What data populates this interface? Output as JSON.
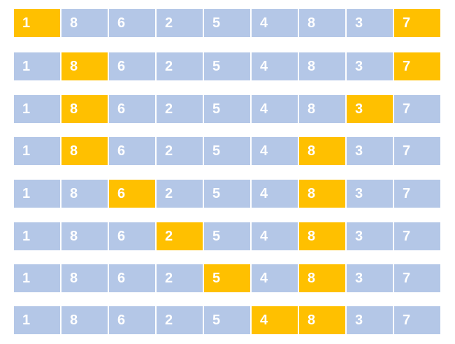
{
  "colors": {
    "normal": "#b4c7e7",
    "highlight": "#ffc000"
  },
  "rows": [
    {
      "values": [
        "1",
        "8",
        "6",
        "2",
        "5",
        "4",
        "8",
        "3",
        "7"
      ],
      "highlighted": [
        0,
        8
      ]
    },
    {
      "values": [
        "1",
        "8",
        "6",
        "2",
        "5",
        "4",
        "8",
        "3",
        "7"
      ],
      "highlighted": [
        1,
        8
      ]
    },
    {
      "values": [
        "1",
        "8",
        "6",
        "2",
        "5",
        "4",
        "8",
        "3",
        "7"
      ],
      "highlighted": [
        1,
        7
      ]
    },
    {
      "values": [
        "1",
        "8",
        "6",
        "2",
        "5",
        "4",
        "8",
        "3",
        "7"
      ],
      "highlighted": [
        1,
        6
      ]
    },
    {
      "values": [
        "1",
        "8",
        "6",
        "2",
        "5",
        "4",
        "8",
        "3",
        "7"
      ],
      "highlighted": [
        2,
        6
      ]
    },
    {
      "values": [
        "1",
        "8",
        "6",
        "2",
        "5",
        "4",
        "8",
        "3",
        "7"
      ],
      "highlighted": [
        3,
        6
      ]
    },
    {
      "values": [
        "1",
        "8",
        "6",
        "2",
        "5",
        "4",
        "8",
        "3",
        "7"
      ],
      "highlighted": [
        4,
        6
      ]
    },
    {
      "values": [
        "1",
        "8",
        "6",
        "2",
        "5",
        "4",
        "8",
        "3",
        "7"
      ],
      "highlighted": [
        5,
        6
      ]
    }
  ]
}
